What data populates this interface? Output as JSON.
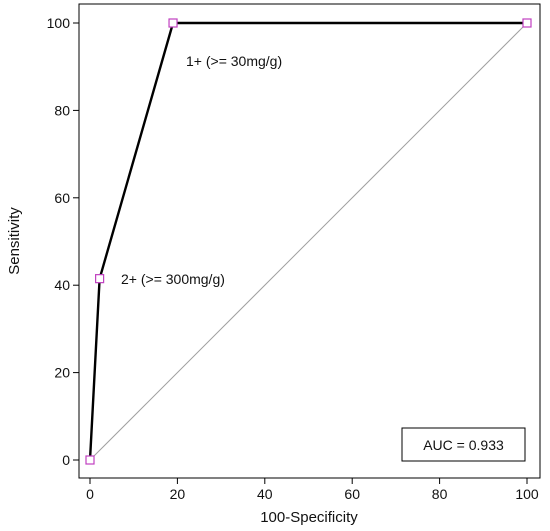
{
  "chart_data": {
    "type": "line",
    "title": "",
    "xlabel": "100-Specificity",
    "ylabel": "Sensitivity",
    "xlim": [
      0,
      100
    ],
    "ylim": [
      0,
      100
    ],
    "x_ticks": [
      0,
      20,
      40,
      60,
      80,
      100
    ],
    "y_ticks": [
      0,
      20,
      40,
      60,
      80,
      100
    ],
    "grid": false,
    "series": [
      {
        "values": [
          {
            "x": 0,
            "y": 0
          },
          {
            "x": 2.2,
            "y": 41.5
          },
          {
            "x": 19.0,
            "y": 100
          },
          {
            "x": 100,
            "y": 100
          }
        ],
        "color": "#000000",
        "marker": "square",
        "marker_color": "#c040c0"
      },
      {
        "values": [
          {
            "x": 0,
            "y": 0
          },
          {
            "x": 100,
            "y": 100
          }
        ],
        "color": "#a0a0a0",
        "style": "diagonal-reference"
      }
    ],
    "annotations": [
      {
        "text": "1+ (>= 30mg/g)",
        "x": 19.0,
        "y": 100
      },
      {
        "text": "2+ (>= 300mg/g)",
        "x": 2.2,
        "y": 41.5
      }
    ],
    "auc_label": "AUC = 0.933"
  }
}
